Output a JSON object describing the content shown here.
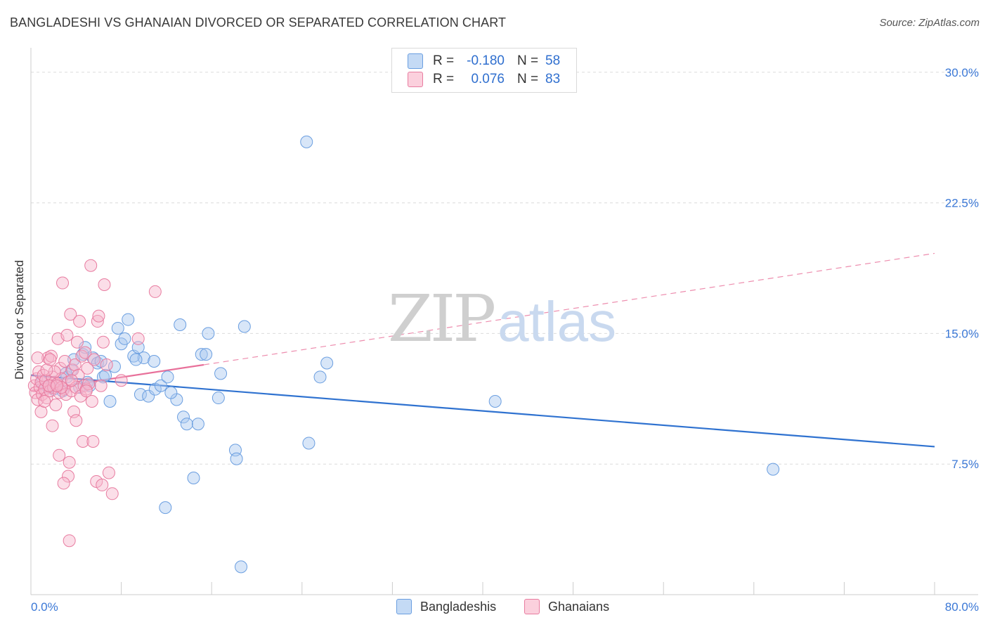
{
  "title": "BANGLADESHI VS GHANAIAN DIVORCED OR SEPARATED CORRELATION CHART",
  "source": "Source: ZipAtlas.com",
  "watermark": {
    "zip": "ZIP",
    "atlas": "atlas"
  },
  "legend": {
    "rows": [
      {
        "r_label": "R =",
        "r_value": "-0.180",
        "n_label": "N =",
        "n_value": "58",
        "color": "#a8c8f0"
      },
      {
        "r_label": "R =",
        "r_value": "0.076",
        "n_label": "N =",
        "n_value": "83",
        "color": "#f7b6cb"
      }
    ]
  },
  "bottom_legend": [
    {
      "label": "Bangladeshis",
      "color": "#a8c8f0"
    },
    {
      "label": "Ghanaians",
      "color": "#f7b6cb"
    }
  ],
  "chart_data": {
    "type": "scatter",
    "title": "BANGLADESHI VS GHANAIAN DIVORCED OR SEPARATED CORRELATION CHART",
    "xlabel": "",
    "ylabel": "Divorced or Separated",
    "xlim": [
      0,
      80
    ],
    "ylim": [
      0,
      31
    ],
    "x_tick_labels": [
      {
        "value": 0,
        "label": "0.0%"
      },
      {
        "value": 80,
        "label": "80.0%"
      }
    ],
    "y_tick_labels": [
      {
        "value": 7.5,
        "label": "7.5%"
      },
      {
        "value": 15,
        "label": "15.0%"
      },
      {
        "value": 22.5,
        "label": "22.5%"
      },
      {
        "value": 30,
        "label": "30.0%"
      }
    ],
    "x_minor_ticks": [
      0,
      8,
      16,
      24,
      32,
      40,
      48,
      56,
      64,
      72,
      80
    ],
    "series": [
      {
        "name": "Bangladeshis",
        "color": "#a8c8f0",
        "stroke": "#6a9ee0",
        "trend": {
          "x0": 0,
          "y0": 12.6,
          "x1": 80,
          "y1": 8.5,
          "style": "solid",
          "color": "#2f72d0"
        },
        "points": [
          [
            1.0,
            12.2
          ],
          [
            1.5,
            11.9
          ],
          [
            2.2,
            12.0
          ],
          [
            2.8,
            11.7
          ],
          [
            3.2,
            12.5
          ],
          [
            3.6,
            12.9
          ],
          [
            3.8,
            13.5
          ],
          [
            4.3,
            11.9
          ],
          [
            4.6,
            13.8
          ],
          [
            4.8,
            14.2
          ],
          [
            5.0,
            12.2
          ],
          [
            5.5,
            13.6
          ],
          [
            5.9,
            13.3
          ],
          [
            6.4,
            12.5
          ],
          [
            6.6,
            12.6
          ],
          [
            7.0,
            11.1
          ],
          [
            7.4,
            13.1
          ],
          [
            7.7,
            15.3
          ],
          [
            8.0,
            14.4
          ],
          [
            8.3,
            14.7
          ],
          [
            8.6,
            15.8
          ],
          [
            9.1,
            13.7
          ],
          [
            9.5,
            14.2
          ],
          [
            9.7,
            11.5
          ],
          [
            10.0,
            13.6
          ],
          [
            10.4,
            11.4
          ],
          [
            10.9,
            13.4
          ],
          [
            11.0,
            11.8
          ],
          [
            11.5,
            12.0
          ],
          [
            11.9,
            5.0
          ],
          [
            12.1,
            12.5
          ],
          [
            12.9,
            11.2
          ],
          [
            13.2,
            15.5
          ],
          [
            13.5,
            10.2
          ],
          [
            13.8,
            9.8
          ],
          [
            14.4,
            6.7
          ],
          [
            14.8,
            9.8
          ],
          [
            15.1,
            13.8
          ],
          [
            15.5,
            13.8
          ],
          [
            15.7,
            15.0
          ],
          [
            16.6,
            11.3
          ],
          [
            16.8,
            12.7
          ],
          [
            18.9,
            15.4
          ],
          [
            18.1,
            8.3
          ],
          [
            18.2,
            7.8
          ],
          [
            18.6,
            1.6
          ],
          [
            24.4,
            26.0
          ],
          [
            24.6,
            8.7
          ],
          [
            25.6,
            12.5
          ],
          [
            26.2,
            13.3
          ],
          [
            41.1,
            11.1
          ],
          [
            65.7,
            7.2
          ],
          [
            2.0,
            11.8
          ],
          [
            3.1,
            12.7
          ],
          [
            5.2,
            12.0
          ],
          [
            6.2,
            13.4
          ],
          [
            9.3,
            13.5
          ],
          [
            12.4,
            11.6
          ]
        ]
      },
      {
        "name": "Ghanaians",
        "color": "#f7b6cb",
        "stroke": "#e87ca0",
        "trend": {
          "x0": 0,
          "y0": 11.7,
          "x1": 15.3,
          "y1": 13.2,
          "style": "solid",
          "color": "#e8709a",
          "ext": {
            "x1": 80,
            "y1": 19.6,
            "style": "dashed"
          }
        },
        "points": [
          [
            0.3,
            12.0
          ],
          [
            0.4,
            11.6
          ],
          [
            0.5,
            12.4
          ],
          [
            0.6,
            11.2
          ],
          [
            0.7,
            12.8
          ],
          [
            0.8,
            11.9
          ],
          [
            0.9,
            12.2
          ],
          [
            1.0,
            11.5
          ],
          [
            1.1,
            12.6
          ],
          [
            1.2,
            11.8
          ],
          [
            1.3,
            12.3
          ],
          [
            1.4,
            11.3
          ],
          [
            1.5,
            13.6
          ],
          [
            1.6,
            12.0
          ],
          [
            1.7,
            11.7
          ],
          [
            1.8,
            13.7
          ],
          [
            1.9,
            12.5
          ],
          [
            2.0,
            11.9
          ],
          [
            2.1,
            12.2
          ],
          [
            2.2,
            10.9
          ],
          [
            2.3,
            12.1
          ],
          [
            2.4,
            14.7
          ],
          [
            2.5,
            11.6
          ],
          [
            2.6,
            13.0
          ],
          [
            2.7,
            12.4
          ],
          [
            2.8,
            17.9
          ],
          [
            2.9,
            11.8
          ],
          [
            3.0,
            13.4
          ],
          [
            3.1,
            11.5
          ],
          [
            3.2,
            14.9
          ],
          [
            3.3,
            12.2
          ],
          [
            3.4,
            7.6
          ],
          [
            3.5,
            16.1
          ],
          [
            3.6,
            11.7
          ],
          [
            3.7,
            12.9
          ],
          [
            3.8,
            10.5
          ],
          [
            3.9,
            13.2
          ],
          [
            4.0,
            11.9
          ],
          [
            4.1,
            14.5
          ],
          [
            4.2,
            12.6
          ],
          [
            4.3,
            15.7
          ],
          [
            4.4,
            11.4
          ],
          [
            4.5,
            13.7
          ],
          [
            4.6,
            8.8
          ],
          [
            4.7,
            12.0
          ],
          [
            4.8,
            13.9
          ],
          [
            4.9,
            11.8
          ],
          [
            5.0,
            13.0
          ],
          [
            5.1,
            12.1
          ],
          [
            5.3,
            18.9
          ],
          [
            5.4,
            11.1
          ],
          [
            5.5,
            8.8
          ],
          [
            5.6,
            13.5
          ],
          [
            5.8,
            6.5
          ],
          [
            5.9,
            15.7
          ],
          [
            6.0,
            16.0
          ],
          [
            6.2,
            12.0
          ],
          [
            6.3,
            6.3
          ],
          [
            6.4,
            14.5
          ],
          [
            6.5,
            17.8
          ],
          [
            6.7,
            13.2
          ],
          [
            6.9,
            7.0
          ],
          [
            7.2,
            5.8
          ],
          [
            8.0,
            12.3
          ],
          [
            9.5,
            14.7
          ],
          [
            11.0,
            17.4
          ],
          [
            1.6,
            12.0
          ],
          [
            1.9,
            9.7
          ],
          [
            2.5,
            8.0
          ],
          [
            3.3,
            6.8
          ],
          [
            4.0,
            10.0
          ],
          [
            0.9,
            10.5
          ],
          [
            1.2,
            11.1
          ],
          [
            2.1,
            12.8
          ],
          [
            2.7,
            11.9
          ],
          [
            3.6,
            12.3
          ],
          [
            4.9,
            11.7
          ],
          [
            1.4,
            12.9
          ],
          [
            0.6,
            13.6
          ],
          [
            3.4,
            3.1
          ],
          [
            2.9,
            6.4
          ],
          [
            1.7,
            13.5
          ],
          [
            2.3,
            12.0
          ]
        ]
      }
    ]
  }
}
